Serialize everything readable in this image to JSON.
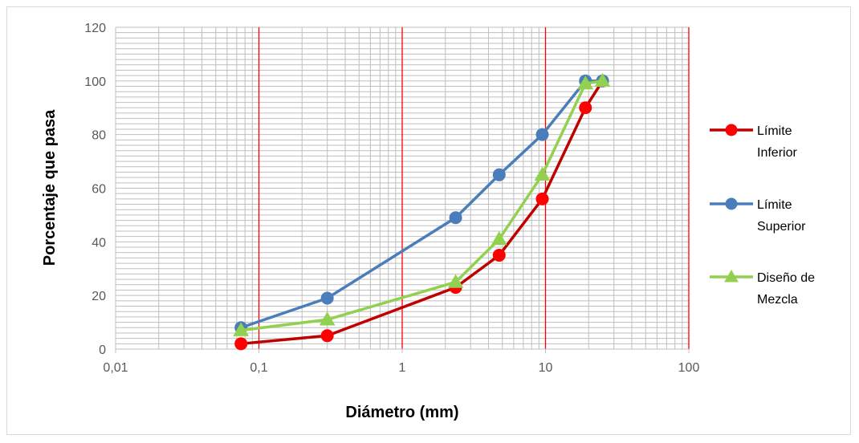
{
  "chart_data": {
    "type": "line",
    "xscale": "log",
    "xlim": [
      0.01,
      100
    ],
    "ylim": [
      0,
      120
    ],
    "xticks": [
      0.01,
      0.1,
      1,
      10,
      100
    ],
    "xtick_labels": [
      "0,01",
      "0,1",
      "1",
      "10",
      "100"
    ],
    "yticks": [
      0,
      20,
      40,
      60,
      80,
      100,
      120
    ],
    "ytick_labels": [
      "0",
      "20",
      "40",
      "60",
      "80",
      "100",
      "120"
    ],
    "xlabel": "Diámetro (mm)",
    "ylabel": "Porcentaje que pasa",
    "grid": true,
    "major_gridline_color": "#ff0000",
    "minor_gridline_color": "#bfbfbf",
    "legend_position": "right",
    "series": [
      {
        "name": "Límite Inferior",
        "name_lines": [
          "Límite",
          "Inferior"
        ],
        "color": "#ff0000",
        "line_color": "#c00000",
        "marker": "circle",
        "x": [
          0.075,
          0.3,
          2.36,
          4.75,
          9.5,
          19,
          25
        ],
        "y": [
          2,
          5,
          23,
          35,
          56,
          90,
          100
        ]
      },
      {
        "name": "Límite Superior",
        "name_lines": [
          "Límite",
          "Superior"
        ],
        "color": "#4a7ebb",
        "line_color": "#4a7ebb",
        "marker": "circle",
        "x": [
          0.075,
          0.3,
          2.36,
          4.75,
          9.5,
          19,
          25
        ],
        "y": [
          8,
          19,
          49,
          65,
          80,
          100,
          100
        ]
      },
      {
        "name": "Diseño de Mezcla",
        "name_lines": [
          "Diseño de",
          "Mezcla"
        ],
        "color": "#92d050",
        "line_color": "#92d050",
        "marker": "triangle",
        "x": [
          0.075,
          0.3,
          2.36,
          4.75,
          9.5,
          19,
          25
        ],
        "y": [
          7,
          11,
          25,
          41,
          65,
          99,
          100
        ]
      }
    ]
  }
}
